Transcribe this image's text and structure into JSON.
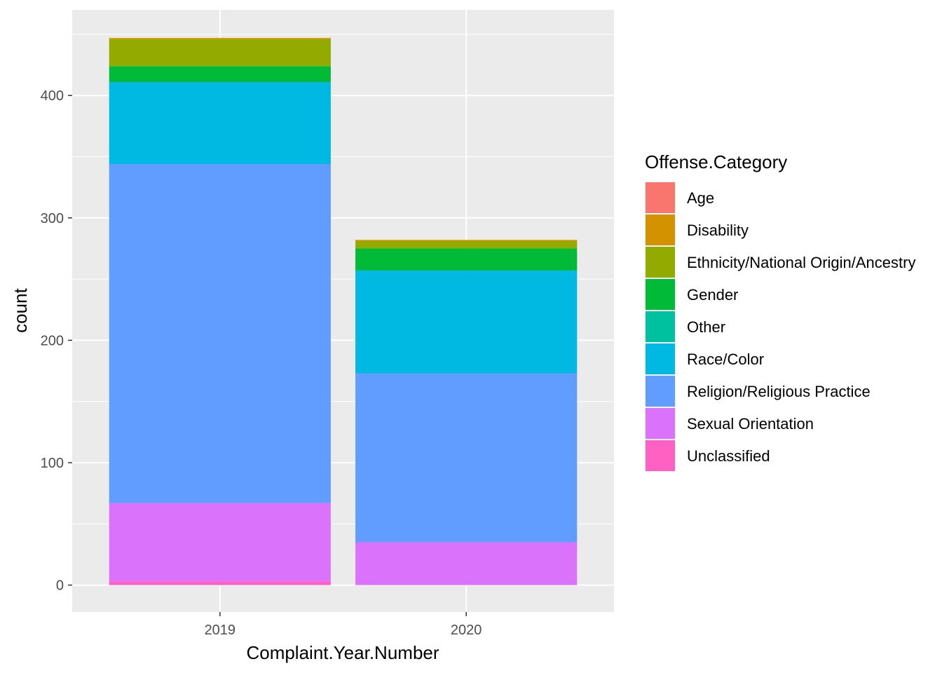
{
  "chart_data": {
    "type": "bar",
    "stacked": true,
    "categories": [
      "2019",
      "2020"
    ],
    "xlabel": "Complaint.Year.Number",
    "ylabel": "count",
    "ylim": [
      -22,
      470
    ],
    "yticks": [
      0,
      100,
      200,
      300,
      400
    ],
    "grid": true,
    "legend": {
      "title": "Offense.Category",
      "placement": "right"
    },
    "series": [
      {
        "name": "Age",
        "color": "#F8766D",
        "values": [
          0,
          0
        ]
      },
      {
        "name": "Disability",
        "color": "#D39200",
        "values": [
          1,
          1
        ]
      },
      {
        "name": "Ethnicity/National Origin/Ancestry",
        "color": "#93AA00",
        "values": [
          22,
          6
        ]
      },
      {
        "name": "Gender",
        "color": "#00BA38",
        "values": [
          13,
          18
        ]
      },
      {
        "name": "Other",
        "color": "#00C19F",
        "values": [
          0,
          0
        ]
      },
      {
        "name": "Race/Color",
        "color": "#00B9E3",
        "values": [
          67,
          84
        ]
      },
      {
        "name": "Religion/Religious Practice",
        "color": "#619CFF",
        "values": [
          277,
          138
        ]
      },
      {
        "name": "Sexual Orientation",
        "color": "#DB72FB",
        "values": [
          64,
          35
        ]
      },
      {
        "name": "Unclassified",
        "color": "#FF61C3",
        "values": [
          3,
          0
        ]
      }
    ]
  }
}
